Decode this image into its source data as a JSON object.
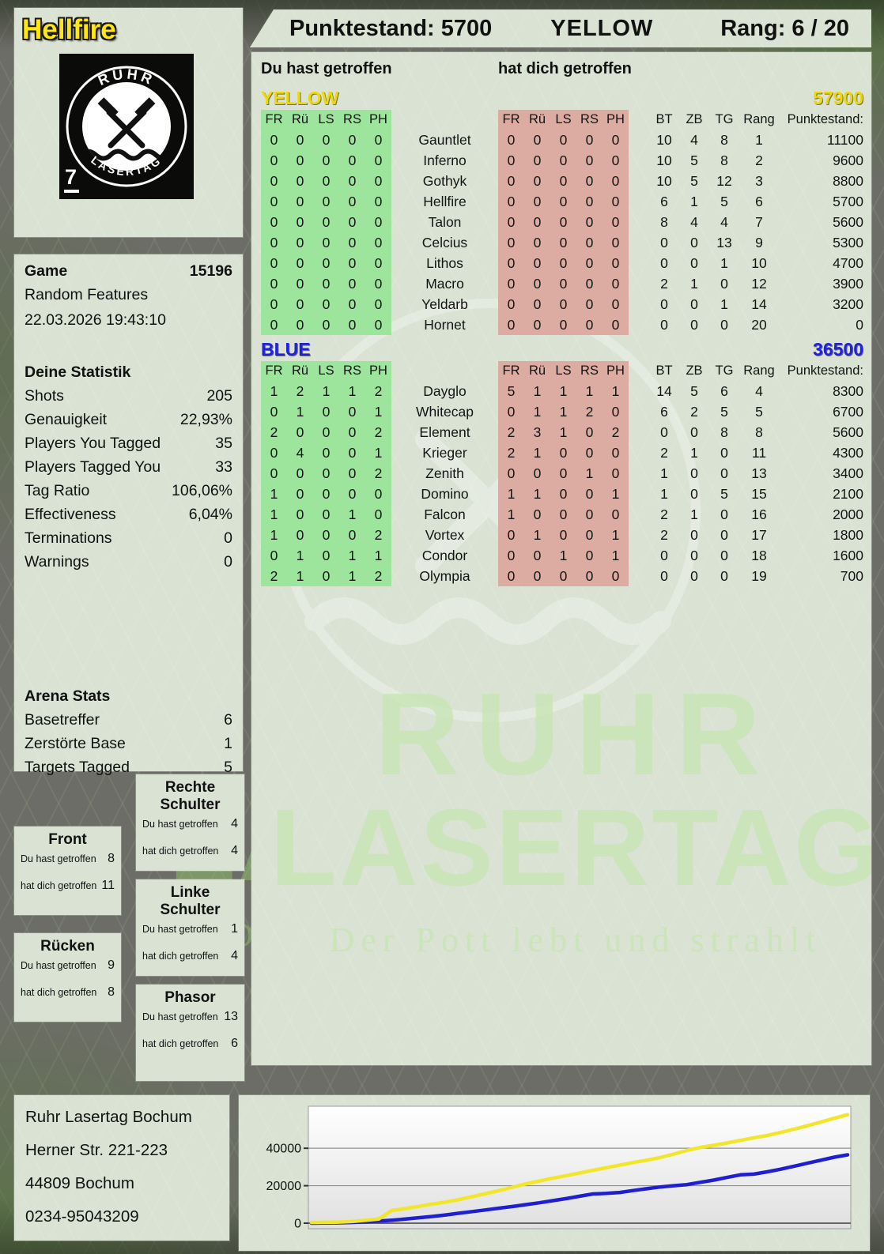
{
  "header": {
    "player_name": "Hellfire",
    "score_text": "Punktestand: 5700",
    "team": "YELLOW",
    "rank_text": "Rang: 6 / 20"
  },
  "logo": {
    "top_text": "RUHR",
    "bottom_text": "LASERTAG",
    "badge_number": "7"
  },
  "watermark": {
    "line1": "RUHR",
    "line2": "LASERTAG",
    "tagline": "Der Pott lebt und strahlt"
  },
  "game_panel": {
    "title": "Game",
    "number": "15196",
    "mode": "Random Features",
    "datetime": "22.03.2026 19:43:10"
  },
  "stats_panel": {
    "title": "Deine Statistik",
    "rows": [
      {
        "label": "Shots",
        "value": "205"
      },
      {
        "label": "Genauigkeit",
        "value": "22,93%"
      },
      {
        "label": "Players You Tagged",
        "value": "35"
      },
      {
        "label": "Players Tagged You",
        "value": "33"
      },
      {
        "label": "Tag Ratio",
        "value": "106,06%"
      },
      {
        "label": "Effectiveness",
        "value": "6,04%"
      },
      {
        "label": "Terminations",
        "value": "0"
      },
      {
        "label": "Warnings",
        "value": "0"
      }
    ]
  },
  "arena_panel": {
    "title": "Arena Stats",
    "rows": [
      {
        "label": "Basetreffer",
        "value": "6"
      },
      {
        "label": "Zerstörte Base",
        "value": "1"
      },
      {
        "label": "Targets Tagged",
        "value": "5"
      }
    ]
  },
  "zone_labels": {
    "you": "Du hast getroffen",
    "them": "hat dich getroffen"
  },
  "hit_zones": [
    {
      "title": "Front",
      "you": "8",
      "them": "11"
    },
    {
      "title": "Rücken",
      "you": "9",
      "them": "8"
    },
    {
      "title": "Rechte Schulter",
      "you": "4",
      "them": "4"
    },
    {
      "title": "Linke Schulter",
      "you": "1",
      "them": "4"
    },
    {
      "title": "Phasor",
      "you": "13",
      "them": "6"
    }
  ],
  "scoreboard": {
    "you_header": "Du hast getroffen",
    "them_header": "hat dich getroffen",
    "col_labels": [
      "FR",
      "Rü",
      "LS",
      "RS",
      "PH"
    ],
    "stat_cols": [
      "BT",
      "ZB",
      "TG",
      "Rang",
      "Punktestand:"
    ],
    "teams": [
      {
        "name": "YELLOW",
        "color": "#f0d900",
        "total": "57900",
        "players": [
          {
            "name": "Gauntlet",
            "you": [
              0,
              0,
              0,
              0,
              0
            ],
            "them": [
              0,
              0,
              0,
              0,
              0
            ],
            "bt": 10,
            "zb": 4,
            "tg": 8,
            "rang": 1,
            "punkte": "11100"
          },
          {
            "name": "Inferno",
            "you": [
              0,
              0,
              0,
              0,
              0
            ],
            "them": [
              0,
              0,
              0,
              0,
              0
            ],
            "bt": 10,
            "zb": 5,
            "tg": 8,
            "rang": 2,
            "punkte": "9600"
          },
          {
            "name": "Gothyk",
            "you": [
              0,
              0,
              0,
              0,
              0
            ],
            "them": [
              0,
              0,
              0,
              0,
              0
            ],
            "bt": 10,
            "zb": 5,
            "tg": 12,
            "rang": 3,
            "punkte": "8800"
          },
          {
            "name": "Hellfire",
            "you": [
              0,
              0,
              0,
              0,
              0
            ],
            "them": [
              0,
              0,
              0,
              0,
              0
            ],
            "bt": 6,
            "zb": 1,
            "tg": 5,
            "rang": 6,
            "punkte": "5700"
          },
          {
            "name": "Talon",
            "you": [
              0,
              0,
              0,
              0,
              0
            ],
            "them": [
              0,
              0,
              0,
              0,
              0
            ],
            "bt": 8,
            "zb": 4,
            "tg": 4,
            "rang": 7,
            "punkte": "5600"
          },
          {
            "name": "Celcius",
            "you": [
              0,
              0,
              0,
              0,
              0
            ],
            "them": [
              0,
              0,
              0,
              0,
              0
            ],
            "bt": 0,
            "zb": 0,
            "tg": 13,
            "rang": 9,
            "punkte": "5300"
          },
          {
            "name": "Lithos",
            "you": [
              0,
              0,
              0,
              0,
              0
            ],
            "them": [
              0,
              0,
              0,
              0,
              0
            ],
            "bt": 0,
            "zb": 0,
            "tg": 1,
            "rang": 10,
            "punkte": "4700"
          },
          {
            "name": "Macro",
            "you": [
              0,
              0,
              0,
              0,
              0
            ],
            "them": [
              0,
              0,
              0,
              0,
              0
            ],
            "bt": 2,
            "zb": 1,
            "tg": 0,
            "rang": 12,
            "punkte": "3900"
          },
          {
            "name": "Yeldarb",
            "you": [
              0,
              0,
              0,
              0,
              0
            ],
            "them": [
              0,
              0,
              0,
              0,
              0
            ],
            "bt": 0,
            "zb": 0,
            "tg": 1,
            "rang": 14,
            "punkte": "3200"
          },
          {
            "name": "Hornet",
            "you": [
              0,
              0,
              0,
              0,
              0
            ],
            "them": [
              0,
              0,
              0,
              0,
              0
            ],
            "bt": 0,
            "zb": 0,
            "tg": 0,
            "rang": 20,
            "punkte": "0"
          }
        ]
      },
      {
        "name": "BLUE",
        "color": "#2020e0",
        "total": "36500",
        "players": [
          {
            "name": "Dayglo",
            "you": [
              1,
              2,
              1,
              1,
              2
            ],
            "them": [
              5,
              1,
              1,
              1,
              1
            ],
            "bt": 14,
            "zb": 5,
            "tg": 6,
            "rang": 4,
            "punkte": "8300"
          },
          {
            "name": "Whitecap",
            "you": [
              0,
              1,
              0,
              0,
              1
            ],
            "them": [
              0,
              1,
              1,
              2,
              0
            ],
            "bt": 6,
            "zb": 2,
            "tg": 5,
            "rang": 5,
            "punkte": "6700"
          },
          {
            "name": "Element",
            "you": [
              2,
              0,
              0,
              0,
              2
            ],
            "them": [
              2,
              3,
              1,
              0,
              2
            ],
            "bt": 0,
            "zb": 0,
            "tg": 8,
            "rang": 8,
            "punkte": "5600"
          },
          {
            "name": "Krieger",
            "you": [
              0,
              4,
              0,
              0,
              1
            ],
            "them": [
              2,
              1,
              0,
              0,
              0
            ],
            "bt": 2,
            "zb": 1,
            "tg": 0,
            "rang": 11,
            "punkte": "4300"
          },
          {
            "name": "Zenith",
            "you": [
              0,
              0,
              0,
              0,
              2
            ],
            "them": [
              0,
              0,
              0,
              1,
              0
            ],
            "bt": 1,
            "zb": 0,
            "tg": 0,
            "rang": 13,
            "punkte": "3400"
          },
          {
            "name": "Domino",
            "you": [
              1,
              0,
              0,
              0,
              0
            ],
            "them": [
              1,
              1,
              0,
              0,
              1
            ],
            "bt": 1,
            "zb": 0,
            "tg": 5,
            "rang": 15,
            "punkte": "2100"
          },
          {
            "name": "Falcon",
            "you": [
              1,
              0,
              0,
              1,
              0
            ],
            "them": [
              1,
              0,
              0,
              0,
              0
            ],
            "bt": 2,
            "zb": 1,
            "tg": 0,
            "rang": 16,
            "punkte": "2000"
          },
          {
            "name": "Vortex",
            "you": [
              1,
              0,
              0,
              0,
              2
            ],
            "them": [
              0,
              1,
              0,
              0,
              1
            ],
            "bt": 2,
            "zb": 0,
            "tg": 0,
            "rang": 17,
            "punkte": "1800"
          },
          {
            "name": "Condor",
            "you": [
              0,
              1,
              0,
              1,
              1
            ],
            "them": [
              0,
              0,
              1,
              0,
              1
            ],
            "bt": 0,
            "zb": 0,
            "tg": 0,
            "rang": 18,
            "punkte": "1600"
          },
          {
            "name": "Olympia",
            "you": [
              2,
              1,
              0,
              1,
              2
            ],
            "them": [
              0,
              0,
              0,
              0,
              0
            ],
            "bt": 0,
            "zb": 0,
            "tg": 0,
            "rang": 19,
            "punkte": "700"
          }
        ]
      }
    ]
  },
  "address": [
    "Ruhr Lasertag Bochum",
    "Herner Str. 221-223",
    "44809 Bochum",
    "0234-95043209"
  ],
  "chart_data": {
    "type": "line",
    "title": "",
    "xlabel": "",
    "ylabel": "",
    "ylim": [
      0,
      62000
    ],
    "yticks": [
      0,
      20000,
      40000
    ],
    "grid": true,
    "legend_position": "none",
    "series": [
      {
        "name": "YELLOW",
        "color": "#f2e62c",
        "values": [
          400,
          450,
          600,
          900,
          1500,
          2200,
          6800,
          7800,
          9000,
          10200,
          11300,
          12600,
          14200,
          15800,
          17400,
          19200,
          21000,
          22500,
          24000,
          25400,
          26800,
          28200,
          29600,
          31000,
          32400,
          33600,
          35000,
          36800,
          38800,
          40400,
          41600,
          42800,
          44200,
          45600,
          46800,
          48400,
          50200,
          52000,
          54000,
          56000,
          57900
        ]
      },
      {
        "name": "BLUE",
        "color": "#1f1fd0",
        "values": [
          0,
          100,
          200,
          400,
          700,
          1100,
          1600,
          2200,
          2900,
          3600,
          4400,
          5300,
          6200,
          7100,
          8000,
          8900,
          9900,
          10900,
          12000,
          13100,
          14400,
          15600,
          15900,
          16400,
          17400,
          18400,
          19300,
          20000,
          20600,
          21800,
          23000,
          24400,
          25800,
          26200,
          27400,
          28800,
          30400,
          32000,
          33600,
          35200,
          36500
        ]
      }
    ]
  }
}
